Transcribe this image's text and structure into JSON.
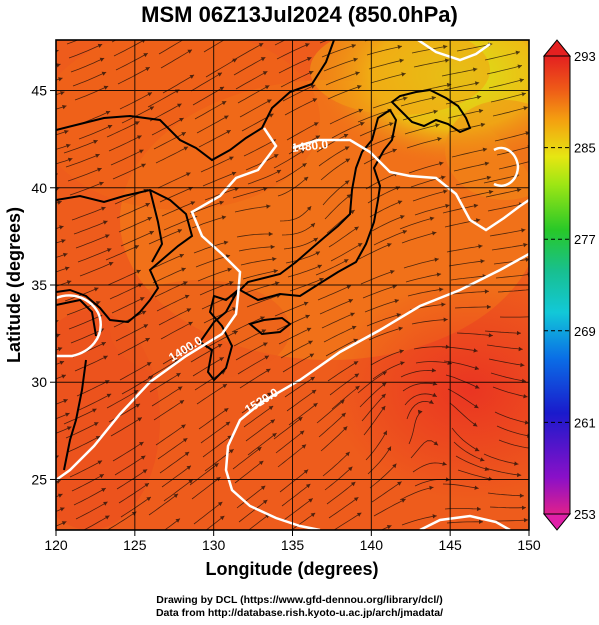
{
  "title": "MSM 06Z13Jul2024 (850.0hPa)",
  "map": {
    "xlabel": "Longitude (degrees)",
    "ylabel": "Latitude  (degrees)",
    "lon_range": [
      120,
      150
    ],
    "lat_range": [
      22.4,
      47.6
    ],
    "lon_ticks": [
      "120",
      "125",
      "130",
      "135",
      "140",
      "145",
      "150"
    ],
    "lat_ticks": [
      "25",
      "30",
      "35",
      "40",
      "45"
    ],
    "contour_labels": [
      "1480.0",
      "1400.0",
      "1520.0"
    ],
    "field": "temperature shaded, wind streamlines, geopotential height contours (white)"
  },
  "colorbar": {
    "min": 253,
    "max": 293,
    "labels": [
      "293",
      "285",
      "277",
      "269",
      "261",
      "253"
    ],
    "colors": [
      "#e0208c",
      "#8a10c8",
      "#1a1acc",
      "#0a6ee6",
      "#12c8d8",
      "#18c090",
      "#28c828",
      "#9ee614",
      "#e6e612",
      "#f4a010",
      "#ee5818",
      "#e42020"
    ]
  },
  "credits": {
    "line1": "Drawing by DCL (https://www.gfd-dennou.org/library/dcl/)",
    "line2": "Data from http://database.rish.kyoto-u.ac.jp/arch/jmadata/"
  }
}
